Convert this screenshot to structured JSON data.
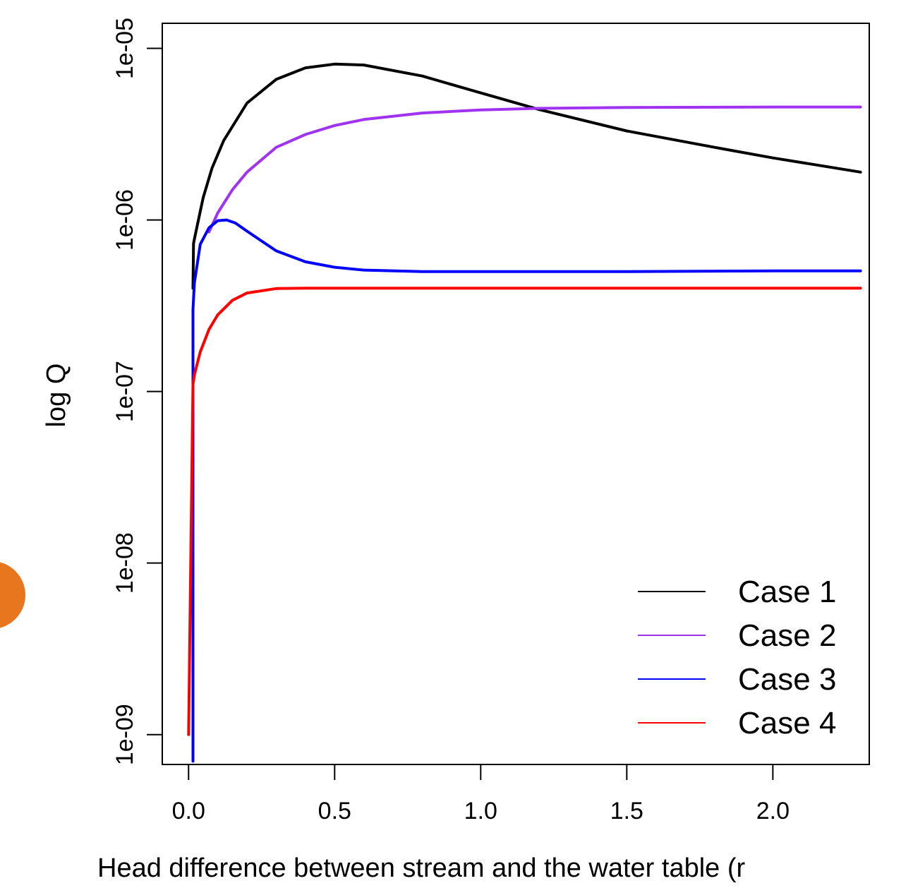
{
  "chart_data": {
    "type": "line",
    "title": "",
    "xlabel": "Head difference between stream and the water table (r",
    "ylabel": "log Q",
    "y_scale": "log",
    "xlim": [
      -0.09,
      2.33
    ],
    "ylim": [
      6.7e-10,
      1.4e-05
    ],
    "x_ticks": [
      "0.0",
      "0.5",
      "1.0",
      "1.5",
      "2.0"
    ],
    "y_ticks": [
      "1e-09",
      "1e-08",
      "1e-07",
      "1e-06",
      "1e-05"
    ],
    "grid": false,
    "legend_position": "bottom-right",
    "series": [
      {
        "name": "Case 1",
        "color": "#000000",
        "x": [
          0.015,
          0.017,
          0.025,
          0.05,
          0.08,
          0.12,
          0.2,
          0.3,
          0.4,
          0.5,
          0.6,
          0.8,
          1.0,
          1.2,
          1.5,
          1.8,
          2.0,
          2.3
        ],
        "y": [
          4e-07,
          7.3e-07,
          8.5e-07,
          1.35e-06,
          2e-06,
          2.9e-06,
          4.8e-06,
          6.6e-06,
          7.7e-06,
          8.1e-06,
          8e-06,
          6.9e-06,
          5.5e-06,
          4.4e-06,
          3.3e-06,
          2.65e-06,
          2.3e-06,
          1.9e-06
        ]
      },
      {
        "name": "Case 2",
        "color": "#a033f0",
        "x": [
          0.07,
          0.1,
          0.15,
          0.2,
          0.3,
          0.4,
          0.5,
          0.6,
          0.8,
          1.0,
          1.2,
          1.5,
          1.8,
          2.0,
          2.3
        ],
        "y": [
          8.5e-07,
          1.1e-06,
          1.5e-06,
          1.9e-06,
          2.65e-06,
          3.15e-06,
          3.55e-06,
          3.85e-06,
          4.2e-06,
          4.38e-06,
          4.47e-06,
          4.52e-06,
          4.54e-06,
          4.55e-06,
          4.55e-06
        ]
      },
      {
        "name": "Case 3",
        "color": "#0000ff",
        "x": [
          0.015,
          0.015,
          0.02,
          0.04,
          0.07,
          0.1,
          0.13,
          0.16,
          0.2,
          0.3,
          0.4,
          0.5,
          0.6,
          0.8,
          1.0,
          1.5,
          2.0,
          2.3
        ],
        "y": [
          7e-10,
          3e-07,
          4.3e-07,
          7.2e-07,
          9e-07,
          9.9e-07,
          1e-06,
          9.6e-07,
          8.6e-07,
          6.6e-07,
          5.7e-07,
          5.3e-07,
          5.1e-07,
          5e-07,
          5e-07,
          5e-07,
          5.05e-07,
          5.05e-07
        ]
      },
      {
        "name": "Case 4",
        "color": "#ff0000",
        "x": [
          0.0,
          0.015,
          0.02,
          0.04,
          0.07,
          0.1,
          0.15,
          0.2,
          0.3,
          0.4,
          0.6,
          1.0,
          1.5,
          2.0,
          2.3
        ],
        "y": [
          1e-09,
          1.1e-07,
          1.25e-07,
          1.7e-07,
          2.3e-07,
          2.8e-07,
          3.4e-07,
          3.75e-07,
          3.98e-07,
          4e-07,
          4e-07,
          4e-07,
          4e-07,
          4e-07,
          4e-07
        ]
      }
    ]
  }
}
